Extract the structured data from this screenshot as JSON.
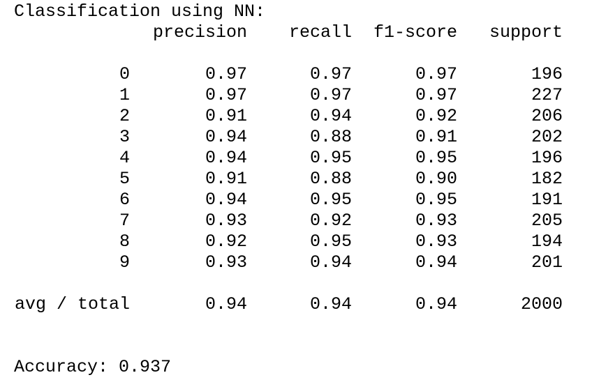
{
  "title": "Classification using NN:",
  "headers": {
    "precision": "precision",
    "recall": "recall",
    "f1": "f1-score",
    "support": "support"
  },
  "rows": [
    {
      "label": "0",
      "precision": "0.97",
      "recall": "0.97",
      "f1": "0.97",
      "support": "196"
    },
    {
      "label": "1",
      "precision": "0.97",
      "recall": "0.97",
      "f1": "0.97",
      "support": "227"
    },
    {
      "label": "2",
      "precision": "0.91",
      "recall": "0.94",
      "f1": "0.92",
      "support": "206"
    },
    {
      "label": "3",
      "precision": "0.94",
      "recall": "0.88",
      "f1": "0.91",
      "support": "202"
    },
    {
      "label": "4",
      "precision": "0.94",
      "recall": "0.95",
      "f1": "0.95",
      "support": "196"
    },
    {
      "label": "5",
      "precision": "0.91",
      "recall": "0.88",
      "f1": "0.90",
      "support": "182"
    },
    {
      "label": "6",
      "precision": "0.94",
      "recall": "0.95",
      "f1": "0.95",
      "support": "191"
    },
    {
      "label": "7",
      "precision": "0.93",
      "recall": "0.92",
      "f1": "0.93",
      "support": "205"
    },
    {
      "label": "8",
      "precision": "0.92",
      "recall": "0.95",
      "f1": "0.93",
      "support": "194"
    },
    {
      "label": "9",
      "precision": "0.93",
      "recall": "0.94",
      "f1": "0.94",
      "support": "201"
    }
  ],
  "total": {
    "label": "avg / total",
    "precision": "0.94",
    "recall": "0.94",
    "f1": "0.94",
    "support": "2000"
  },
  "accuracy": "Accuracy: 0.937"
}
